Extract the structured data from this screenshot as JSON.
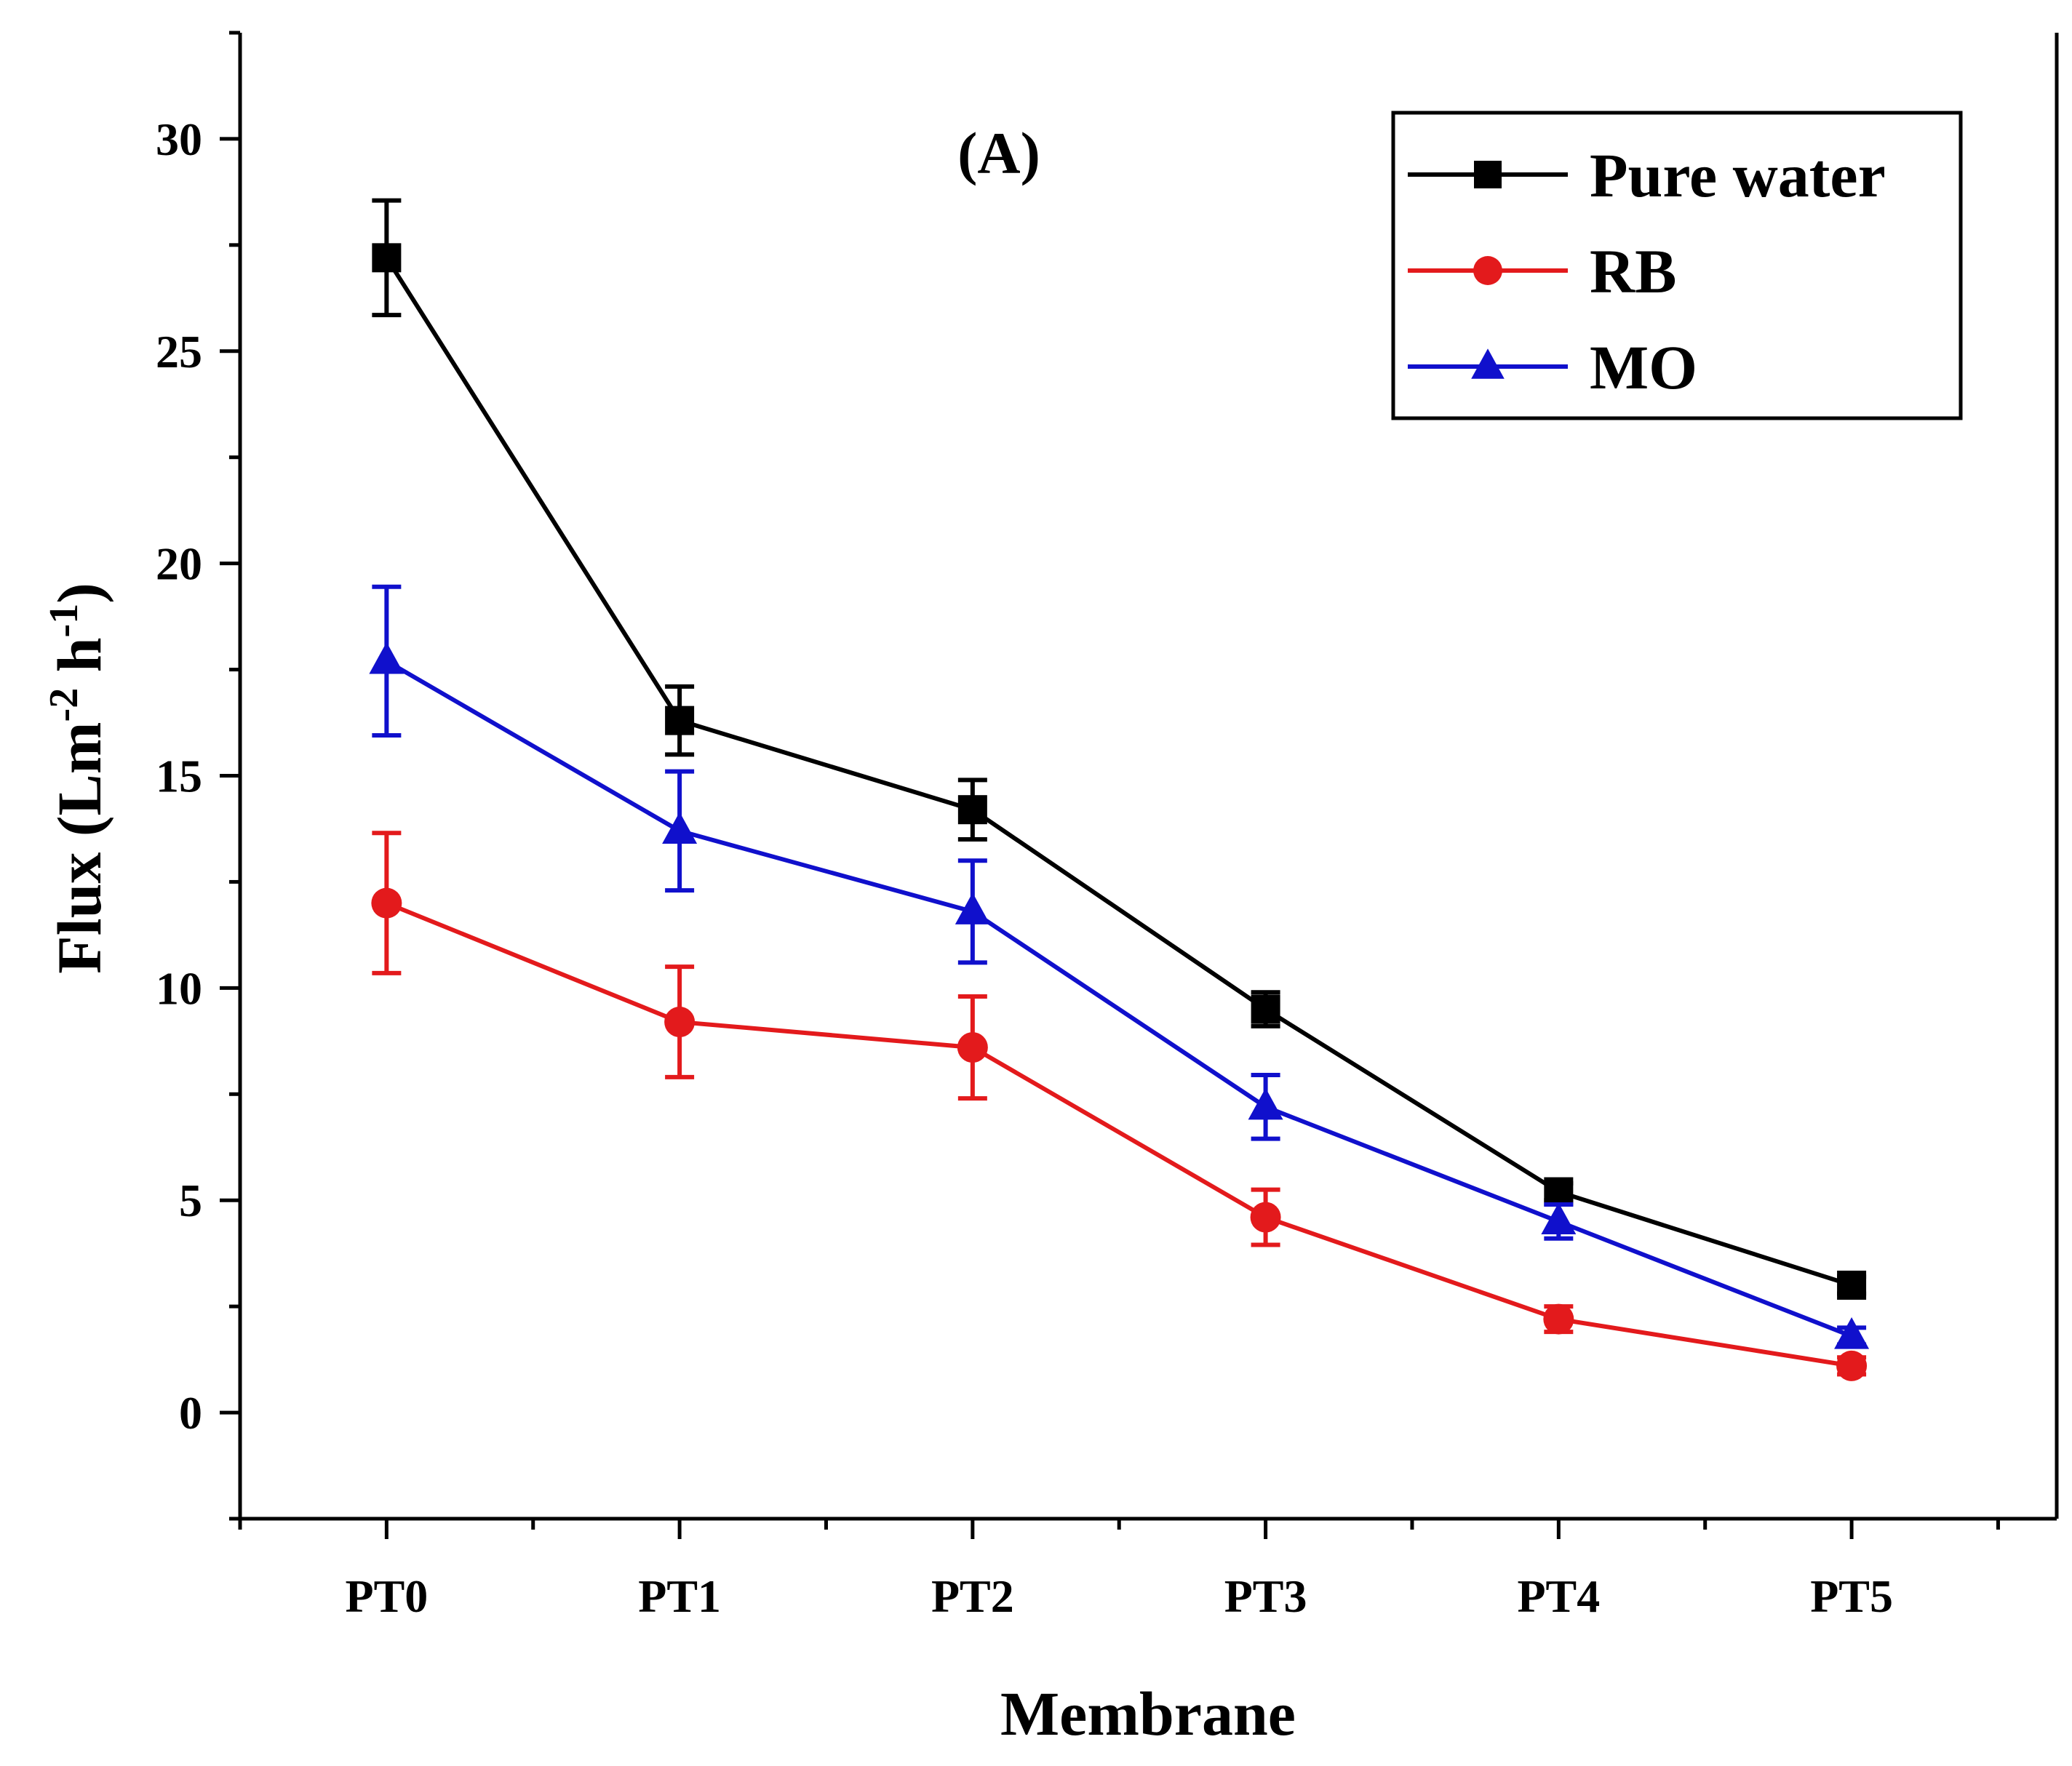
{
  "chart_data": {
    "type": "line",
    "panel_label": "(A)",
    "xlabel": "Membrane",
    "ylabel": {
      "base": "Flux  (Lm",
      "sup1": "-2",
      "mid": " h",
      "sup2": "-1",
      "end": ")"
    },
    "categories": [
      "PT0",
      "PT1",
      "PT2",
      "PT3",
      "PT4",
      "PT5"
    ],
    "ylim": [
      -2.5,
      32.5
    ],
    "yticks": [
      0,
      5,
      10,
      15,
      20,
      25,
      30
    ],
    "ytick_labels": [
      "0",
      "5",
      "10",
      "15",
      "20",
      "25",
      "30"
    ],
    "legend_position": "top-right",
    "series": [
      {
        "name": "Pure water",
        "color": "#000000",
        "marker": "square",
        "values": [
          27.2,
          16.3,
          14.2,
          9.5,
          5.2,
          3.0
        ],
        "errors": [
          1.35,
          0.8,
          0.7,
          0.4,
          0.2,
          0.2
        ]
      },
      {
        "name": "RB",
        "color": "#e31a1c",
        "marker": "circle",
        "values": [
          12.0,
          9.2,
          8.6,
          4.6,
          2.2,
          1.1
        ],
        "errors": [
          1.65,
          1.3,
          1.2,
          0.65,
          0.3,
          0.2
        ]
      },
      {
        "name": "MO",
        "color": "#1010cc",
        "marker": "triangle",
        "values": [
          17.7,
          13.7,
          11.8,
          7.2,
          4.5,
          1.8
        ],
        "errors": [
          1.75,
          1.4,
          1.2,
          0.75,
          0.4,
          0.2
        ]
      }
    ]
  }
}
